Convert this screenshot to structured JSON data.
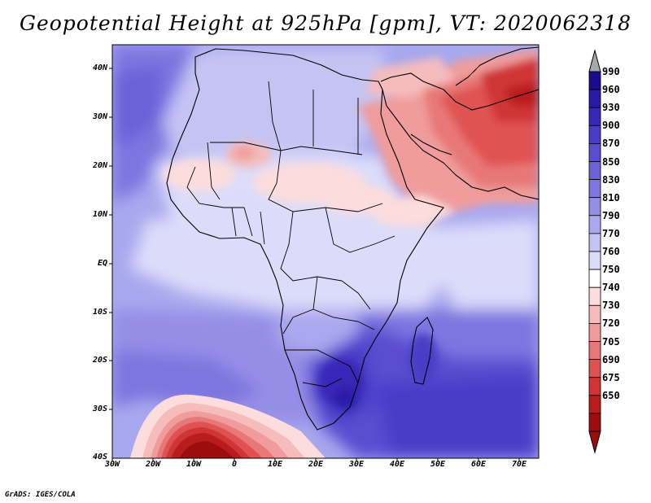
{
  "title": "Geopotential Height at 925hPa [gpm], VT: 2020062318",
  "credit": "GrADS: IGES/COLA",
  "lat_labels": [
    "40N",
    "30N",
    "20N",
    "10N",
    "EQ",
    "10S",
    "20S",
    "30S",
    "40S"
  ],
  "lon_labels": [
    "30W",
    "20W",
    "10W",
    "0",
    "10E",
    "20E",
    "30E",
    "40E",
    "50E",
    "60E",
    "70E"
  ],
  "colorbar": {
    "levels": [
      "990",
      "960",
      "930",
      "900",
      "870",
      "850",
      "830",
      "810",
      "790",
      "770",
      "760",
      "750",
      "740",
      "730",
      "720",
      "705",
      "690",
      "675",
      "650"
    ],
    "colors": [
      "#1a0c8c",
      "#2a1aa8",
      "#3828b8",
      "#4a3cc8",
      "#5a4ed0",
      "#6c62d8",
      "#7e76e0",
      "#948ee6",
      "#aaa8ee",
      "#c4c4f4",
      "#dcdcfa",
      "#ffffff",
      "#fcdcdc",
      "#f6bcbc",
      "#f09c9c",
      "#e87878",
      "#e05252",
      "#d03434",
      "#b81c1c",
      "#9c0e0e"
    ],
    "top_arrow_color": "#a8a8a8"
  }
}
